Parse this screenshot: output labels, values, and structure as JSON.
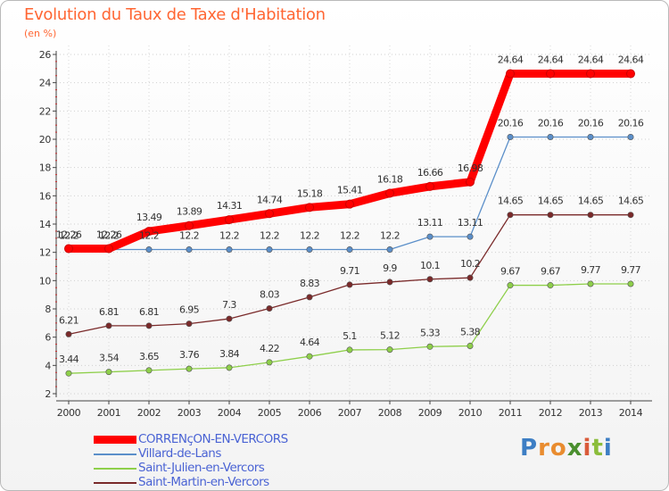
{
  "title": "Evolution du Taux de Taxe d'Habitation",
  "unit": "(en %)",
  "logo": {
    "letters": [
      {
        "char": "P",
        "color": "#3d7ec4"
      },
      {
        "char": "r",
        "color": "#e98c2f"
      },
      {
        "char": "o",
        "color": "#e98c2f"
      },
      {
        "char": "x",
        "color": "#4a8f2e"
      },
      {
        "char": "i",
        "color": "#d95b3a"
      },
      {
        "char": "t",
        "color": "#8bbd3b"
      },
      {
        "char": "i",
        "color": "#3d7ec4"
      }
    ]
  },
  "chart_data": {
    "type": "line",
    "title": "Evolution du Taux de Taxe d'Habitation",
    "ylabel": "(en %)",
    "xlabel": "",
    "x": [
      "2000",
      "2001",
      "2002",
      "2003",
      "2004",
      "2005",
      "2006",
      "2007",
      "2008",
      "2009",
      "2010",
      "2011",
      "2012",
      "2013",
      "2014"
    ],
    "ylim": [
      2,
      26
    ],
    "yticks": [
      "2",
      "4",
      "6",
      "8",
      "10",
      "12",
      "14",
      "16",
      "18",
      "20",
      "22",
      "24",
      "26"
    ],
    "legend_position": "bottom-left",
    "series": [
      {
        "name": "CORRENçON-EN-VERCORS",
        "color": "#ff0000",
        "values": [
          12.26,
          12.26,
          13.49,
          13.89,
          14.31,
          14.74,
          15.18,
          15.41,
          16.18,
          16.66,
          16.98,
          24.64,
          24.64,
          24.64,
          24.64
        ],
        "labels": [
          "12.26",
          "12.26",
          "13.49",
          "13.89",
          "14.31",
          "14.74",
          "15.18",
          "15.41",
          "16.18",
          "16.66",
          "16.98",
          "24.64",
          "24.64",
          "24.64",
          "24.64"
        ]
      },
      {
        "name": "Villard-de-Lans",
        "color": "#5b8fc9",
        "values": [
          12.2,
          12.2,
          12.2,
          12.2,
          12.2,
          12.2,
          12.2,
          12.2,
          12.2,
          13.11,
          13.11,
          20.16,
          20.16,
          20.16,
          20.16
        ],
        "labels": [
          "12.2",
          "12.2",
          "12.2",
          "12.2",
          "12.2",
          "12.2",
          "12.2",
          "12.2",
          "12.2",
          "13.11",
          "13.11",
          "20.16",
          "20.16",
          "20.16",
          "20.16"
        ]
      },
      {
        "name": "Saint-Julien-en-Vercors",
        "color": "#8ecf4a",
        "values": [
          3.44,
          3.54,
          3.65,
          3.76,
          3.84,
          4.22,
          4.64,
          5.1,
          5.12,
          5.33,
          5.38,
          9.67,
          9.67,
          9.77,
          9.77
        ],
        "labels": [
          "3.44",
          "3.54",
          "3.65",
          "3.76",
          "3.84",
          "4.22",
          "4.64",
          "5.1",
          "5.12",
          "5.33",
          "5.38",
          "9.67",
          "9.67",
          "9.77",
          "9.77"
        ]
      },
      {
        "name": "Saint-Martin-en-Vercors",
        "color": "#7a2a2a",
        "values": [
          6.21,
          6.81,
          6.81,
          6.95,
          7.3,
          8.03,
          8.83,
          9.71,
          9.9,
          10.1,
          10.2,
          14.65,
          14.65,
          14.65,
          14.65
        ],
        "labels": [
          "6.21",
          "6.81",
          "6.81",
          "6.95",
          "7.3",
          "8.03",
          "8.83",
          "9.71",
          "9.9",
          "10.1",
          "10.2",
          "14.65",
          "14.65",
          "14.65",
          "14.65"
        ]
      }
    ]
  }
}
